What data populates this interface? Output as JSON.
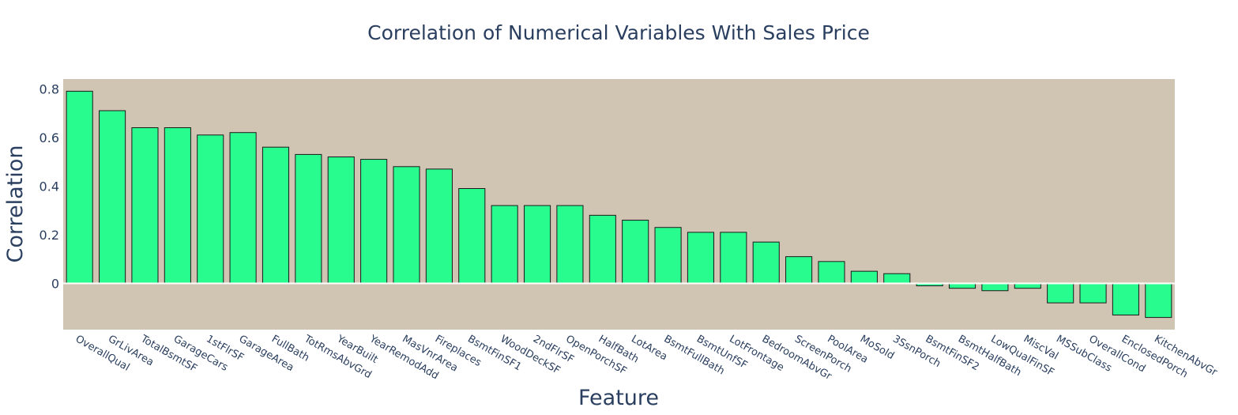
{
  "chart_data": {
    "type": "bar",
    "title": "Correlation of Numerical Variables With Sales Price",
    "xlabel": "Feature",
    "ylabel": "Correlation",
    "ylim": [
      -0.19,
      0.84
    ],
    "yticks": [
      {
        "value": 0.8,
        "label": "0.8"
      },
      {
        "value": 0.6,
        "label": "0.6"
      },
      {
        "value": 0.4,
        "label": "0.4"
      },
      {
        "value": 0.2,
        "label": "0.2"
      },
      {
        "value": 0,
        "label": "0"
      }
    ],
    "grid": false,
    "zeroline": true,
    "colors": {
      "bar": "#28fc8f",
      "bar_edge": "#1a1a1a",
      "plot_bg": "#d0c4b3",
      "text": "#2a3f5f",
      "zeroline": "#ffffff"
    },
    "categories": [
      "OverallQual",
      "GrLivArea",
      "TotalBsmtSF",
      "GarageCars",
      "1stFlrSF",
      "GarageArea",
      "FullBath",
      "TotRmsAbvGrd",
      "YearBuilt",
      "YearRemodAdd",
      "MasVnrArea",
      "Fireplaces",
      "BsmtFinSF1",
      "WoodDeckSF",
      "2ndFlrSF",
      "OpenPorchSF",
      "HalfBath",
      "LotArea",
      "BsmtFullBath",
      "BsmtUnfSF",
      "LotFrontage",
      "BedroomAbvGr",
      "ScreenPorch",
      "PoolArea",
      "MoSold",
      "3SsnPorch",
      "BsmtFinSF2",
      "BsmtHalfBath",
      "LowQualFinSF",
      "MiscVal",
      "MSSubClass",
      "OverallCond",
      "EnclosedPorch",
      "KitchenAbvGr"
    ],
    "values": [
      0.79,
      0.71,
      0.64,
      0.64,
      0.61,
      0.62,
      0.56,
      0.53,
      0.52,
      0.51,
      0.48,
      0.47,
      0.39,
      0.32,
      0.32,
      0.32,
      0.28,
      0.26,
      0.23,
      0.21,
      0.21,
      0.17,
      0.11,
      0.09,
      0.05,
      0.04,
      -0.01,
      -0.02,
      -0.03,
      -0.02,
      -0.08,
      -0.08,
      -0.13,
      -0.14
    ]
  }
}
